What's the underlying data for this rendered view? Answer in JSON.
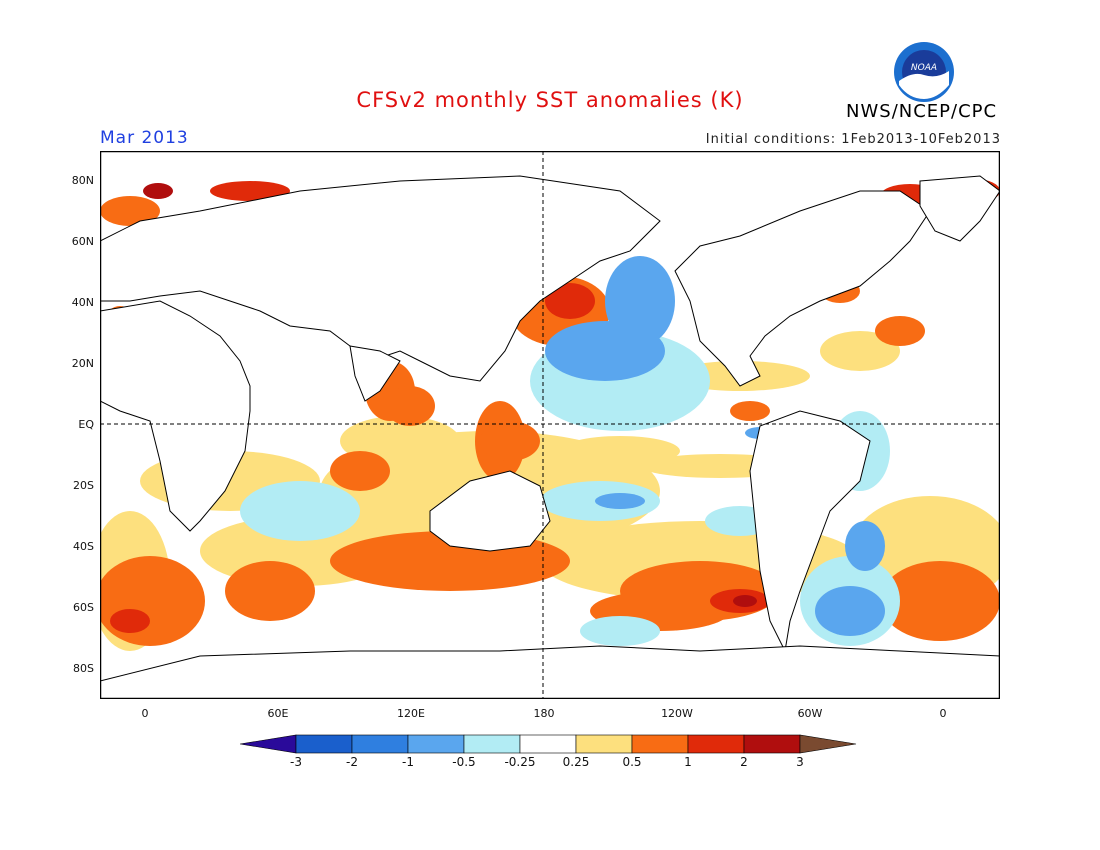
{
  "header": {
    "title": "CFSv2 monthly SST anomalies (K)",
    "agency": "NWS/NCEP/CPC",
    "logo_text": "NOAA",
    "month": "Mar 2013",
    "initial_conditions": "Initial conditions: 1Feb2013-10Feb2013"
  },
  "axes": {
    "y_ticks": [
      "80N",
      "60N",
      "40N",
      "20N",
      "EQ",
      "20S",
      "40S",
      "60S",
      "80S"
    ],
    "x_ticks": [
      "0",
      "60E",
      "120E",
      "180",
      "120W",
      "60W",
      "0"
    ]
  },
  "colorbar": {
    "labels": [
      "-3",
      "-2",
      "-1",
      "-0.5",
      "-0.25",
      "0.25",
      "0.5",
      "1",
      "2",
      "3"
    ],
    "colors": [
      "#2a0a9a",
      "#1a5fcc",
      "#2f7fe0",
      "#5aa6ee",
      "#b2ecf4",
      "#ffffff",
      "#fde07e",
      "#f86c14",
      "#e02a0a",
      "#b00e0e",
      "#7a4a30"
    ]
  },
  "colors": {
    "title": "#e01010",
    "month": "#2040e0",
    "land": "#ffffff",
    "coast": "#000000"
  }
}
